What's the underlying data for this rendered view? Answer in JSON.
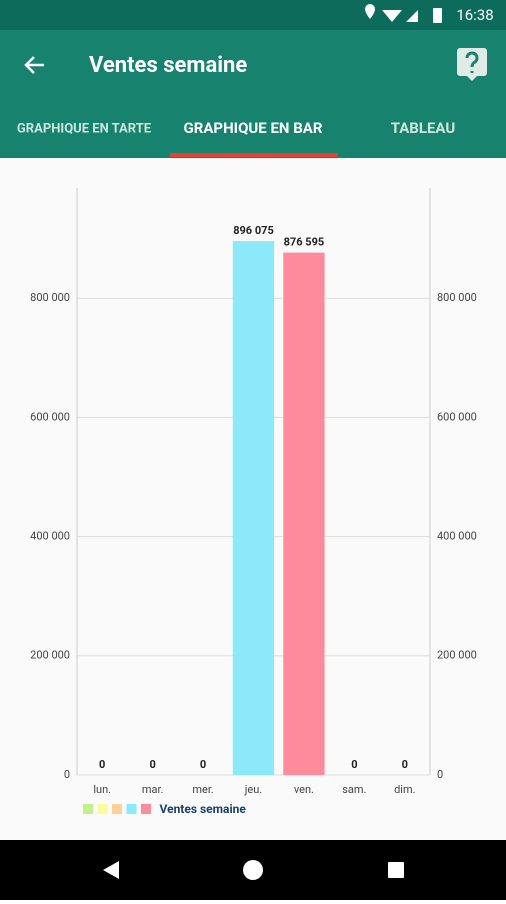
{
  "status_bar": {
    "time": "16:38"
  },
  "app_bar": {
    "title": "Ventes semaine"
  },
  "tabs": [
    "GRAPHIQUE EN TARTE",
    "GRAPHIQUE EN BAR",
    "TABLEAU"
  ],
  "chart_data": {
    "type": "bar",
    "categories": [
      "lun.",
      "mar.",
      "mer.",
      "jeu.",
      "ven.",
      "sam.",
      "dim."
    ],
    "series": [
      {
        "name": "Ventes semaine",
        "colors": [
          "#c1f08f",
          "#fffa9d",
          "#ffd09a",
          "#8ce9f9",
          "#fe8b9c"
        ],
        "values": [
          0,
          0,
          0,
          896075,
          876595,
          0,
          0
        ],
        "value_labels": [
          "0",
          "0",
          "0",
          "896 075",
          "876 595",
          "0",
          "0"
        ]
      }
    ],
    "ylim": [
      0,
      985000
    ],
    "yticks": [
      0,
      {
        "value": 200000,
        "label": "200 000"
      },
      {
        "value": 400000,
        "label": "400 000"
      },
      {
        "value": 600000,
        "label": "600 000"
      },
      {
        "value": 800000,
        "label": "800 000"
      }
    ],
    "grid": true
  }
}
